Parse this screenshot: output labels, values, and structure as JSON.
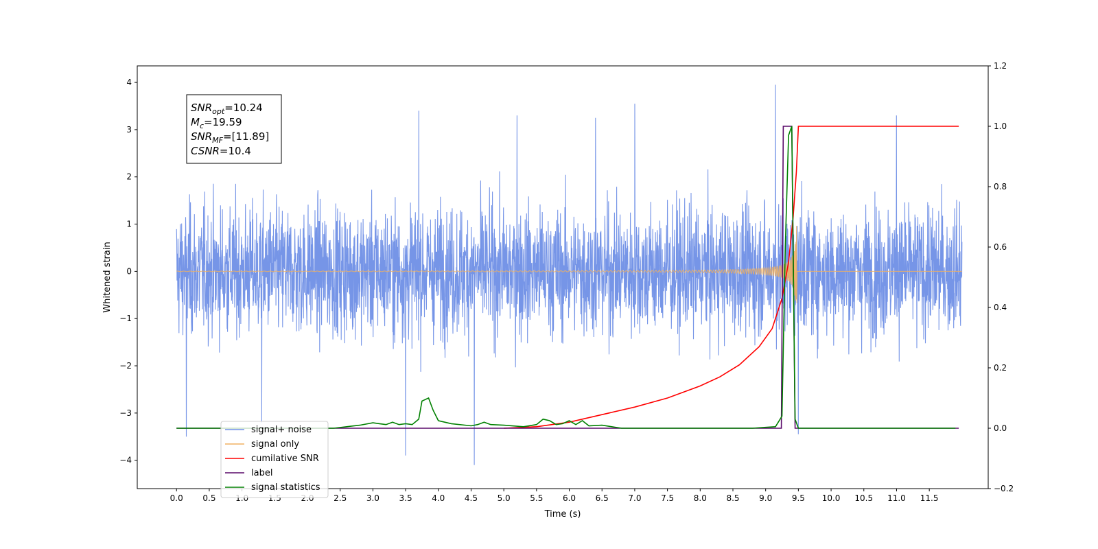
{
  "chart_data": {
    "type": "line",
    "title": "",
    "xlabel": "Time (s)",
    "ylabel": "Whitened strain",
    "y2label": "",
    "xlim": [
      -0.6,
      12.4
    ],
    "ylim": [
      -4.6,
      4.35
    ],
    "y2lim": [
      -0.2,
      1.2
    ],
    "xticks": [
      "0.0",
      "0.5",
      "1.0",
      "1.5",
      "2.0",
      "2.5",
      "3.0",
      "3.5",
      "4.0",
      "4.5",
      "5.0",
      "5.5",
      "6.0",
      "6.5",
      "7.0",
      "7.5",
      "8.0",
      "8.5",
      "9.0",
      "9.5",
      "10.0",
      "10.5",
      "11.0",
      "11.5"
    ],
    "yticks": [
      "4",
      "3",
      "2",
      "1",
      "0",
      "−1",
      "−2",
      "−3",
      "−4"
    ],
    "y2ticks": [
      "1.2",
      "1.0",
      "0.8",
      "0.6",
      "0.4",
      "0.2",
      "0.0",
      "−0.2"
    ],
    "grid": false,
    "legend_position": "lower-left",
    "annotation": {
      "lines": [
        {
          "sym": "SNR",
          "sub": "opt",
          "val": "=10.24"
        },
        {
          "sym": "M",
          "sub": "c",
          "val": "=19.59"
        },
        {
          "sym": "SNR",
          "sub": "MF",
          "val": "=[11.89]"
        },
        {
          "sym": "CSNR",
          "sub": "",
          "val": "=10.4"
        }
      ]
    },
    "series": [
      {
        "name": "signal+ noise",
        "color": "#6f8fe6",
        "axis": "left",
        "x_range": [
          0.0,
          12.0
        ],
        "amplitude_band": [
          -2.2,
          2.2
        ],
        "extremes": [
          [
            0.15,
            -3.5
          ],
          [
            3.5,
            -3.9
          ],
          [
            4.55,
            -4.1
          ],
          [
            7.0,
            3.55
          ],
          [
            9.15,
            3.95
          ],
          [
            9.5,
            -3.45
          ],
          [
            3.7,
            3.4
          ],
          [
            5.2,
            3.3
          ],
          [
            6.4,
            3.25
          ],
          [
            11.0,
            3.3
          ],
          [
            1.3,
            -3.2
          ]
        ]
      },
      {
        "name": "signal only",
        "color": "#f0b060",
        "axis": "left",
        "chirp_start": 0.0,
        "chirp_merger": 9.48,
        "chirp_end": 12.0,
        "peak_amplitude": 1.0
      },
      {
        "name": "cumilative SNR",
        "color": "#ff0000",
        "axis": "right",
        "points": [
          [
            5.0,
            0.0
          ],
          [
            5.5,
            0.005
          ],
          [
            6.0,
            0.02
          ],
          [
            6.5,
            0.045
          ],
          [
            7.0,
            0.07
          ],
          [
            7.5,
            0.1
          ],
          [
            8.0,
            0.14
          ],
          [
            8.3,
            0.17
          ],
          [
            8.6,
            0.21
          ],
          [
            8.9,
            0.27
          ],
          [
            9.1,
            0.33
          ],
          [
            9.25,
            0.43
          ],
          [
            9.35,
            0.55
          ],
          [
            9.42,
            0.7
          ],
          [
            9.47,
            0.85
          ],
          [
            9.5,
            1.0
          ],
          [
            11.95,
            1.0
          ]
        ]
      },
      {
        "name": "label",
        "color": "#5a0a6a",
        "axis": "right",
        "points": [
          [
            0.0,
            0.0
          ],
          [
            9.24,
            0.0
          ],
          [
            9.27,
            1.0
          ],
          [
            9.4,
            1.0
          ],
          [
            9.45,
            0.0
          ],
          [
            11.95,
            0.0
          ]
        ]
      },
      {
        "name": "signal statistics",
        "color": "#008000",
        "axis": "right",
        "points": [
          [
            0.0,
            0.0
          ],
          [
            2.4,
            0.0
          ],
          [
            2.6,
            0.005
          ],
          [
            2.8,
            0.01
          ],
          [
            3.0,
            0.018
          ],
          [
            3.1,
            0.015
          ],
          [
            3.2,
            0.012
          ],
          [
            3.3,
            0.02
          ],
          [
            3.4,
            0.012
          ],
          [
            3.5,
            0.015
          ],
          [
            3.6,
            0.012
          ],
          [
            3.7,
            0.03
          ],
          [
            3.75,
            0.09
          ],
          [
            3.85,
            0.1
          ],
          [
            3.92,
            0.06
          ],
          [
            4.0,
            0.025
          ],
          [
            4.2,
            0.015
          ],
          [
            4.5,
            0.008
          ],
          [
            4.6,
            0.012
          ],
          [
            4.7,
            0.02
          ],
          [
            4.8,
            0.012
          ],
          [
            5.0,
            0.01
          ],
          [
            5.3,
            0.005
          ],
          [
            5.5,
            0.012
          ],
          [
            5.6,
            0.03
          ],
          [
            5.7,
            0.025
          ],
          [
            5.8,
            0.012
          ],
          [
            5.9,
            0.015
          ],
          [
            6.0,
            0.025
          ],
          [
            6.1,
            0.012
          ],
          [
            6.2,
            0.025
          ],
          [
            6.3,
            0.008
          ],
          [
            6.5,
            0.01
          ],
          [
            6.8,
            0.0
          ],
          [
            8.8,
            0.0
          ],
          [
            9.0,
            0.003
          ],
          [
            9.15,
            0.005
          ],
          [
            9.25,
            0.04
          ],
          [
            9.3,
            0.6
          ],
          [
            9.35,
            0.97
          ],
          [
            9.4,
            1.0
          ],
          [
            9.43,
            0.4
          ],
          [
            9.45,
            0.03
          ],
          [
            9.5,
            0.0
          ],
          [
            11.9,
            0.0
          ]
        ]
      }
    ]
  }
}
